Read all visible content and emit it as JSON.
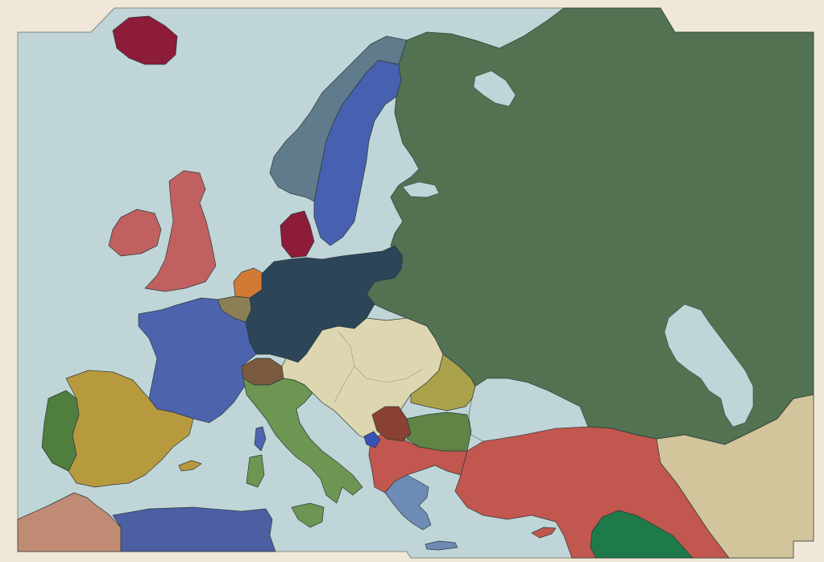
{
  "map": {
    "colors": {
      "frame": "#efe8d8",
      "sea": "#c0d5d8",
      "iceland": "#8c1c3a",
      "denmark": "#8c1c3a",
      "norway": "#5f7b8c",
      "sweden": "#4760b0",
      "russia": "#527252",
      "britain_ireland": "#c06060",
      "netherlands": "#d07a35",
      "belgium": "#8b7f55",
      "germany": "#2c4558",
      "france": "#4d63ad",
      "switzerland": "#7a5a3e",
      "austria_hungary": "#ddd6b1",
      "italy": "#6c9652",
      "spain": "#b89a3e",
      "portugal": "#4f7e3f",
      "romania": "#a9a24a",
      "serbia": "#8a4033",
      "bulgaria": "#5f8446",
      "montenegro": "#3651b7",
      "ottoman_empire": "#c2574f",
      "greece": "#6d8bb5",
      "morocco": "#c08b74",
      "algeria_tunisia": "#4d5fa3",
      "persia_arabia": "#d2c59b",
      "levant_green": "#1e7a48",
      "cyprus": "#c2574f"
    }
  }
}
